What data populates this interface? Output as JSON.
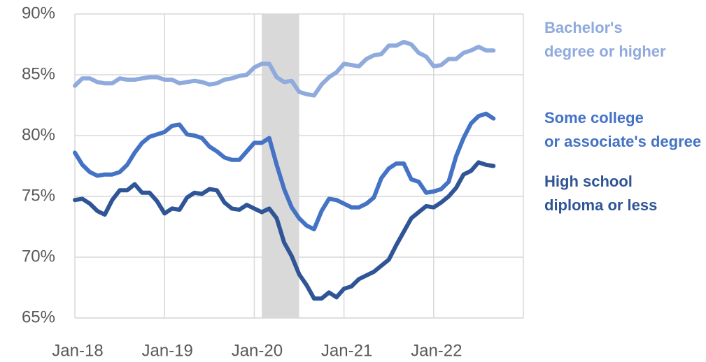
{
  "chart_data": {
    "type": "line",
    "categories": [
      "Jan-18",
      null,
      null,
      null,
      null,
      null,
      null,
      null,
      null,
      null,
      null,
      null,
      "Jan-19",
      null,
      null,
      null,
      null,
      null,
      null,
      null,
      null,
      null,
      null,
      null,
      "Jan-20",
      null,
      null,
      null,
      null,
      null,
      null,
      null,
      null,
      null,
      null,
      null,
      "Jan-21",
      null,
      null,
      null,
      null,
      null,
      null,
      null,
      null,
      null,
      null,
      null,
      "Jan-22",
      null,
      null,
      null,
      null,
      null,
      null,
      null,
      null
    ],
    "xlim": [
      0,
      60
    ],
    "shaded": [
      25,
      30
    ],
    "ylim": [
      65,
      90
    ],
    "yticks": [
      {
        "value": 65,
        "label": "65%"
      },
      {
        "value": 70,
        "label": "70%"
      },
      {
        "value": 75,
        "label": "75%"
      },
      {
        "value": 80,
        "label": "80%"
      },
      {
        "value": 85,
        "label": "85%"
      },
      {
        "value": 90,
        "label": "90%"
      }
    ],
    "grid": true,
    "series": [
      {
        "name": "Bachelor's degree or higher",
        "color": "#8faadc",
        "values": [
          84.1,
          84.7,
          84.7,
          84.4,
          84.3,
          84.3,
          84.7,
          84.6,
          84.6,
          84.7,
          84.8,
          84.8,
          84.6,
          84.6,
          84.3,
          84.4,
          84.5,
          84.4,
          84.2,
          84.3,
          84.6,
          84.7,
          84.9,
          85.0,
          85.6,
          85.9,
          85.9,
          84.8,
          84.4,
          84.5,
          83.6,
          83.4,
          83.3,
          84.2,
          84.8,
          85.2,
          85.9,
          85.8,
          85.7,
          86.3,
          86.6,
          86.7,
          87.4,
          87.4,
          87.7,
          87.5,
          86.8,
          86.5,
          85.7,
          85.8,
          86.3,
          86.3,
          86.8,
          87.0,
          87.3,
          87.0,
          87.0
        ]
      },
      {
        "name": "Some college or associate's degree",
        "color": "#4472c4",
        "values": [
          78.6,
          77.6,
          77.0,
          76.7,
          76.8,
          76.8,
          77.0,
          77.6,
          78.6,
          79.4,
          79.9,
          80.1,
          80.3,
          80.8,
          80.9,
          80.1,
          80.0,
          79.8,
          79.1,
          78.7,
          78.2,
          78.0,
          78.0,
          78.7,
          79.4,
          79.4,
          79.8,
          77.6,
          75.6,
          74.1,
          73.2,
          72.6,
          72.3,
          73.8,
          74.8,
          74.7,
          74.4,
          74.1,
          74.1,
          74.4,
          74.9,
          76.5,
          77.3,
          77.7,
          77.7,
          76.4,
          76.2,
          75.3,
          75.4,
          75.6,
          76.2,
          78.3,
          79.8,
          81.0,
          81.6,
          81.8,
          81.4
        ]
      },
      {
        "name": "High school diploma or less",
        "color": "#2f5597",
        "values": [
          74.7,
          74.8,
          74.4,
          73.8,
          73.5,
          74.7,
          75.5,
          75.5,
          76.0,
          75.3,
          75.3,
          74.6,
          73.6,
          74.0,
          73.9,
          74.9,
          75.3,
          75.2,
          75.6,
          75.5,
          74.5,
          74.0,
          73.9,
          74.3,
          74.0,
          73.7,
          74.0,
          73.2,
          71.2,
          70.1,
          68.6,
          67.7,
          66.6,
          66.6,
          67.1,
          66.7,
          67.4,
          67.6,
          68.2,
          68.5,
          68.8,
          69.3,
          69.8,
          71.0,
          72.1,
          73.2,
          73.7,
          74.2,
          74.1,
          74.5,
          75.0,
          75.7,
          76.8,
          77.1,
          77.8,
          77.6,
          77.5
        ]
      }
    ]
  }
}
